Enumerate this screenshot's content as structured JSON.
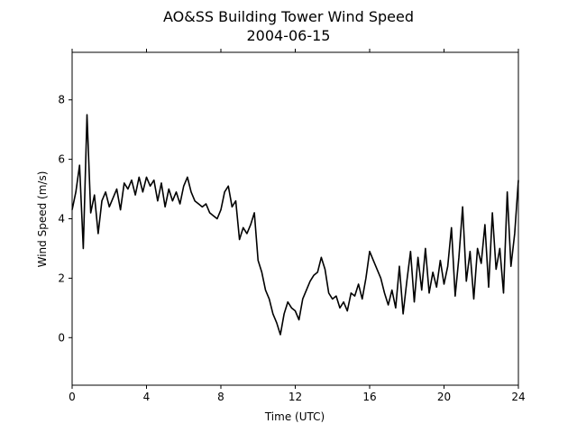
{
  "chart_data": {
    "type": "line",
    "title": "AO&SS Building Tower Wind Speed",
    "subtitle": "2004-06-15",
    "x_label": "Time (UTC)",
    "y_label": "Wind Speed (m/s)",
    "color": "#000000",
    "xlim": [
      0,
      24
    ],
    "xticks": [
      0,
      4,
      8,
      12,
      16,
      20,
      24
    ],
    "ylim": [
      -1.6,
      9.6
    ],
    "yticks": [
      0,
      2,
      4,
      6,
      8
    ],
    "x": [
      0,
      0.2,
      0.4,
      0.6,
      0.8,
      1,
      1.2,
      1.4,
      1.6,
      1.8,
      2,
      2.2,
      2.4,
      2.6,
      2.8,
      3,
      3.2,
      3.4,
      3.6,
      3.8,
      4,
      4.2,
      4.4,
      4.6,
      4.8,
      5,
      5.2,
      5.4,
      5.6,
      5.8,
      6,
      6.2,
      6.4,
      6.6,
      6.8,
      7,
      7.2,
      7.4,
      7.6,
      7.8,
      8,
      8.2,
      8.4,
      8.6,
      8.8,
      9,
      9.2,
      9.4,
      9.6,
      9.8,
      10,
      10.2,
      10.4,
      10.6,
      10.8,
      11,
      11.2,
      11.4,
      11.6,
      11.8,
      12,
      12.2,
      12.4,
      12.6,
      12.8,
      13,
      13.2,
      13.4,
      13.6,
      13.8,
      14,
      14.2,
      14.4,
      14.6,
      14.8,
      15,
      15.2,
      15.4,
      15.6,
      15.8,
      16,
      16.2,
      16.4,
      16.6,
      16.8,
      17,
      17.2,
      17.4,
      17.6,
      17.8,
      18,
      18.2,
      18.4,
      18.6,
      18.8,
      19,
      19.2,
      19.4,
      19.6,
      19.8,
      20,
      20.2,
      20.4,
      20.6,
      20.8,
      21,
      21.2,
      21.4,
      21.6,
      21.8,
      22,
      22.2,
      22.4,
      22.6,
      22.8,
      23,
      23.2,
      23.4,
      23.6,
      23.8,
      24
    ],
    "values": [
      4.3,
      4.9,
      5.8,
      3.0,
      7.5,
      4.2,
      4.8,
      3.5,
      4.6,
      4.9,
      4.4,
      4.7,
      5.0,
      4.3,
      5.2,
      5.0,
      5.3,
      4.8,
      5.4,
      4.9,
      5.4,
      5.1,
      5.3,
      4.6,
      5.2,
      4.4,
      5.0,
      4.6,
      4.9,
      4.5,
      5.1,
      5.4,
      4.9,
      4.6,
      4.5,
      4.4,
      4.5,
      4.2,
      4.1,
      4.0,
      4.3,
      4.9,
      5.1,
      4.4,
      4.6,
      3.3,
      3.7,
      3.5,
      3.8,
      4.2,
      2.6,
      2.2,
      1.6,
      1.3,
      0.8,
      0.5,
      0.1,
      0.8,
      1.2,
      1.0,
      0.9,
      0.6,
      1.3,
      1.6,
      1.9,
      2.1,
      2.2,
      2.7,
      2.3,
      1.5,
      1.3,
      1.4,
      1.0,
      1.2,
      0.9,
      1.5,
      1.4,
      1.8,
      1.3,
      2.0,
      2.9,
      2.6,
      2.3,
      2.0,
      1.5,
      1.1,
      1.6,
      1.0,
      2.4,
      0.8,
      1.9,
      2.9,
      1.2,
      2.7,
      1.6,
      3.0,
      1.5,
      2.2,
      1.7,
      2.6,
      1.8,
      2.4,
      3.7,
      1.4,
      2.7,
      4.4,
      1.9,
      2.9,
      1.3,
      3.0,
      2.5,
      3.8,
      1.7,
      4.2,
      2.3,
      3.0,
      1.5,
      4.9,
      2.4,
      3.5,
      5.3
    ]
  }
}
